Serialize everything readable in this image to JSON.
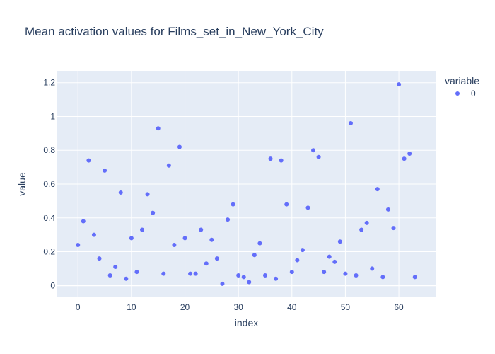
{
  "chart_data": {
    "type": "scatter",
    "title": "Mean activation values for Films_set_in_New_York_City",
    "xlabel": "index",
    "ylabel": "value",
    "xlim": [
      -4,
      67
    ],
    "ylim": [
      -0.07,
      1.27
    ],
    "x_ticks": [
      0,
      10,
      20,
      30,
      40,
      50,
      60
    ],
    "y_ticks": [
      0,
      0.2,
      0.4,
      0.6,
      0.8,
      1,
      1.2
    ],
    "y_tick_labels": [
      "0",
      "0.2",
      "0.4",
      "0.6",
      "0.8",
      "1",
      "1.2"
    ],
    "grid": true,
    "legend": {
      "title": "variable",
      "position": "top-right"
    },
    "series": [
      {
        "name": "0",
        "color": "#636efa",
        "x": [
          0,
          1,
          2,
          3,
          4,
          5,
          6,
          7,
          8,
          9,
          10,
          11,
          12,
          13,
          14,
          15,
          16,
          17,
          18,
          19,
          20,
          21,
          22,
          23,
          24,
          25,
          26,
          27,
          28,
          29,
          30,
          31,
          32,
          33,
          34,
          35,
          36,
          37,
          38,
          39,
          40,
          41,
          42,
          43,
          44,
          45,
          46,
          47,
          48,
          49,
          50,
          51,
          52,
          53,
          54,
          55,
          56,
          57,
          58,
          59,
          60,
          61,
          62,
          63
        ],
        "y": [
          0.24,
          0.38,
          0.74,
          0.3,
          0.16,
          0.68,
          0.06,
          0.11,
          0.55,
          0.04,
          0.28,
          0.08,
          0.33,
          0.54,
          0.43,
          0.93,
          0.07,
          0.71,
          0.24,
          0.82,
          0.28,
          0.07,
          0.07,
          0.33,
          0.13,
          0.27,
          0.16,
          0.01,
          0.39,
          0.48,
          0.06,
          0.05,
          0.02,
          0.18,
          0.25,
          0.06,
          0.75,
          0.04,
          0.74,
          0.48,
          0.08,
          0.15,
          0.21,
          0.46,
          0.8,
          0.76,
          0.08,
          0.17,
          0.14,
          0.26,
          0.07,
          0.96,
          0.06,
          0.33,
          0.37,
          0.1,
          0.57,
          0.05,
          0.45,
          0.34,
          1.19,
          0.75,
          0.78,
          0.05
        ]
      }
    ]
  }
}
